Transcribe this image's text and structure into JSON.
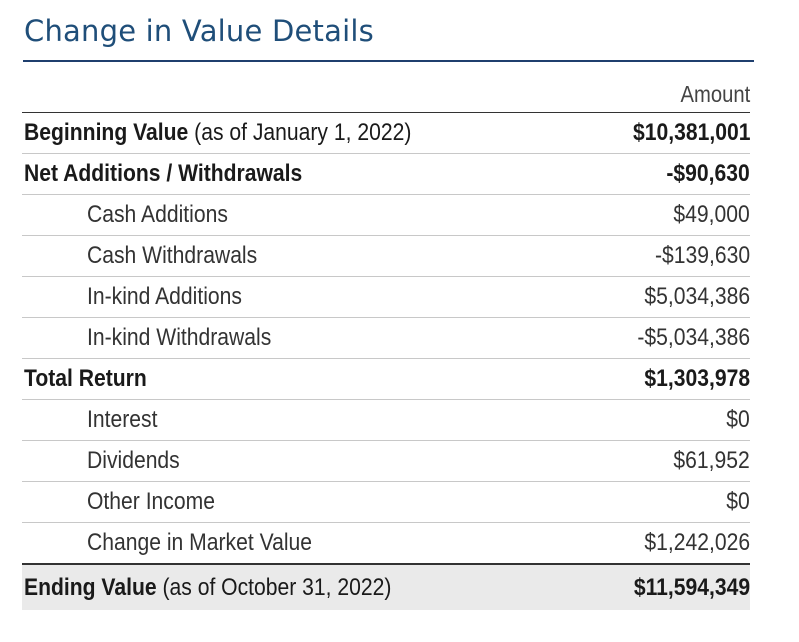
{
  "title": "Change in Value Details",
  "column_header": "Amount",
  "rows": [
    {
      "label": "Beginning Value",
      "note": " (as of January 1, 2022)",
      "value": "$10,381,001",
      "bold": true
    },
    {
      "label": "Net Additions / Withdrawals",
      "note": "",
      "value": "-$90,630",
      "bold": true
    },
    {
      "label": "Cash Additions",
      "note": "",
      "value": "$49,000",
      "bold": false
    },
    {
      "label": "Cash Withdrawals",
      "note": "",
      "value": "-$139,630",
      "bold": false
    },
    {
      "label": "In-kind Additions",
      "note": "",
      "value": "$5,034,386",
      "bold": false
    },
    {
      "label": "In-kind Withdrawals",
      "note": "",
      "value": "-$5,034,386",
      "bold": false
    },
    {
      "label": "Total Return",
      "note": "",
      "value": "$1,303,978",
      "bold": true
    },
    {
      "label": "Interest",
      "note": "",
      "value": "$0",
      "bold": false
    },
    {
      "label": "Dividends",
      "note": "",
      "value": "$61,952",
      "bold": false
    },
    {
      "label": "Other Income",
      "note": "",
      "value": "$0",
      "bold": false
    },
    {
      "label": "Change in Market Value",
      "note": "",
      "value": "$1,242,026",
      "bold": false
    }
  ],
  "ending": {
    "label": "Ending Value",
    "note": " (as of October 31, 2022)",
    "value": "$11,594,349"
  }
}
